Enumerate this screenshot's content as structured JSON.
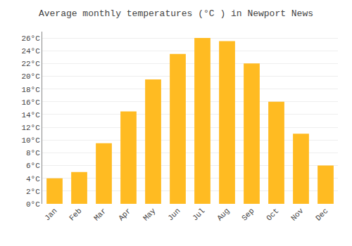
{
  "chart_data": {
    "type": "bar",
    "title": "Average monthly temperatures (°C ) in Newport News",
    "categories": [
      "Jan",
      "Feb",
      "Mar",
      "Apr",
      "May",
      "Jun",
      "Jul",
      "Aug",
      "Sep",
      "Oct",
      "Nov",
      "Dec"
    ],
    "values": [
      4,
      5,
      9.5,
      14.5,
      19.5,
      23.5,
      26,
      25.5,
      22,
      16,
      11,
      6
    ],
    "color": "#FFBB22",
    "ylim": [
      0,
      27
    ],
    "yticks": [
      {
        "value": 0,
        "label": "0°C"
      },
      {
        "value": 2,
        "label": "2°C"
      },
      {
        "value": 4,
        "label": "4°C"
      },
      {
        "value": 6,
        "label": "6°C"
      },
      {
        "value": 8,
        "label": "8°C"
      },
      {
        "value": 10,
        "label": "10°C"
      },
      {
        "value": 12,
        "label": "12°C"
      },
      {
        "value": 14,
        "label": "14°C"
      },
      {
        "value": 16,
        "label": "16°C"
      },
      {
        "value": 18,
        "label": "18°C"
      },
      {
        "value": 20,
        "label": "20°C"
      },
      {
        "value": 22,
        "label": "22°C"
      },
      {
        "value": 24,
        "label": "24°C"
      },
      {
        "value": 26,
        "label": "26°C"
      }
    ],
    "grid": true
  }
}
